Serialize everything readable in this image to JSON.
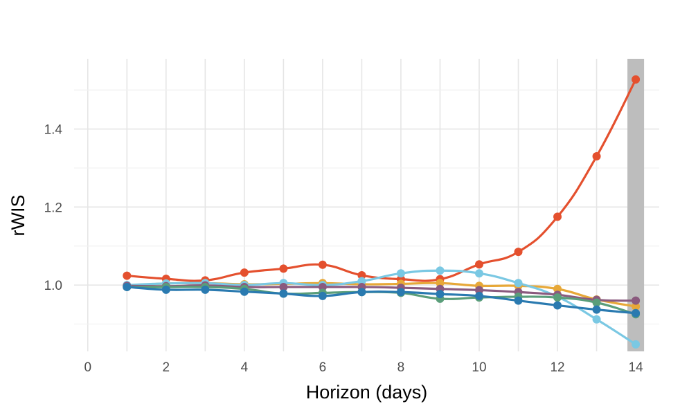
{
  "chart_data": {
    "type": "line",
    "title": "",
    "xlabel": "Horizon (days)",
    "ylabel": "rWIS",
    "xlim": [
      -0.35,
      14.6
    ],
    "ylim": [
      0.83,
      1.58
    ],
    "xticks": [
      0,
      2,
      4,
      6,
      8,
      10,
      12,
      14
    ],
    "yticks": [
      1.0,
      1.2,
      1.4
    ],
    "ytick_labels": [
      "1.0",
      "1.2",
      "1.4"
    ],
    "grid": true,
    "legend": "none",
    "highlight_band": {
      "x": 14,
      "color": "#bdbdbd"
    },
    "x": [
      1,
      2,
      3,
      4,
      5,
      6,
      7,
      8,
      9,
      10,
      11,
      12,
      13,
      14
    ],
    "series": [
      {
        "color": "#e4502e",
        "values": [
          1.024,
          1.016,
          1.012,
          1.032,
          1.042,
          1.052,
          1.025,
          1.015,
          1.015,
          1.053,
          1.085,
          1.175,
          1.33,
          1.527
        ]
      },
      {
        "color": "#e7a838",
        "values": [
          0.998,
          1.004,
          1.005,
          1.002,
          1.003,
          1.005,
          1.002,
          1.003,
          1.005,
          0.998,
          0.998,
          0.99,
          0.963,
          0.945
        ]
      },
      {
        "color": "#7ac8e3",
        "values": [
          1.0,
          1.004,
          1.005,
          1.0,
          1.005,
          1.0,
          1.01,
          1.03,
          1.037,
          1.03,
          1.005,
          0.97,
          0.912,
          0.848
        ]
      },
      {
        "color": "#8a5a7e",
        "values": [
          0.998,
          0.997,
          0.999,
          0.995,
          0.995,
          0.995,
          0.995,
          0.993,
          0.99,
          0.987,
          0.982,
          0.975,
          0.962,
          0.96
        ]
      },
      {
        "color": "#5a9e7a",
        "values": [
          0.995,
          0.995,
          0.995,
          0.99,
          0.978,
          0.98,
          0.982,
          0.98,
          0.965,
          0.968,
          0.97,
          0.968,
          0.955,
          0.925
        ]
      },
      {
        "color": "#2a7ab0",
        "values": [
          0.995,
          0.988,
          0.988,
          0.983,
          0.978,
          0.972,
          0.982,
          0.982,
          0.977,
          0.972,
          0.96,
          0.948,
          0.937,
          0.928
        ]
      }
    ]
  }
}
